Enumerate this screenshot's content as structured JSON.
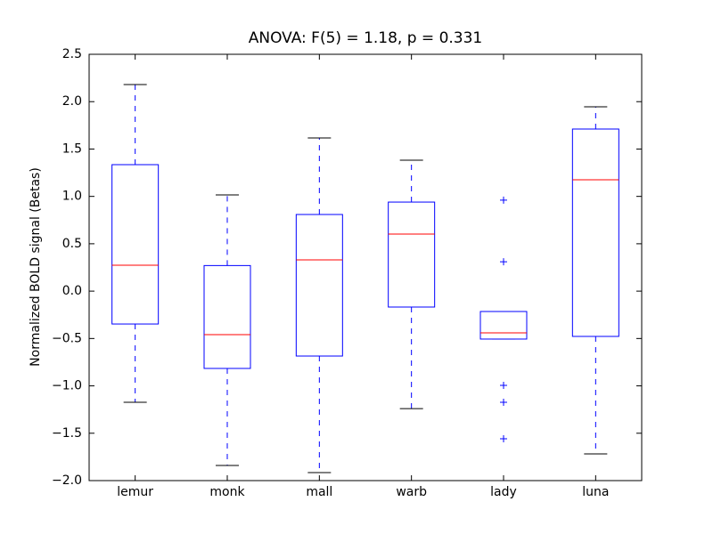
{
  "chart_data": {
    "type": "box",
    "title": "ANOVA: F(5) = 1.18, p = 0.331",
    "ylabel": "Normalized BOLD signal (Betas)",
    "categories": [
      "lemur",
      "monk",
      "mall",
      "warb",
      "lady",
      "luna"
    ],
    "whishi": [
      2.18,
      1.016,
      1.617,
      1.382,
      -0.215,
      1.946
    ],
    "q3": [
      1.335,
      0.27,
      0.809,
      0.94,
      -0.215,
      1.711
    ],
    "median": [
      0.273,
      -0.459,
      0.33,
      0.602,
      -0.44,
      1.175
    ],
    "q1": [
      -0.347,
      -0.816,
      -0.685,
      -0.168,
      -0.506,
      -0.478
    ],
    "whislo": [
      -1.173,
      -1.84,
      -1.916,
      -1.24,
      -0.506,
      -1.718
    ],
    "fliers": [
      [],
      [],
      [],
      [],
      [
        0.96,
        0.31,
        -0.995,
        -1.173,
        -1.559
      ],
      []
    ],
    "box_color": "#0000ff",
    "median_color": "#ff0000",
    "cap_color": "#000000",
    "ylim": [
      -2.0,
      2.5
    ],
    "yticks": [
      {
        "value": -2.0,
        "label": "−2.0"
      },
      {
        "value": -1.5,
        "label": "−1.5"
      },
      {
        "value": -1.0,
        "label": "−1.0"
      },
      {
        "value": -0.5,
        "label": "−0.5"
      },
      {
        "value": 0.0,
        "label": "0.0"
      },
      0.5,
      {
        "value": 1.0,
        "label": "1.0"
      },
      1.5,
      {
        "value": 2.0,
        "label": "2.0"
      },
      2.5
    ]
  }
}
